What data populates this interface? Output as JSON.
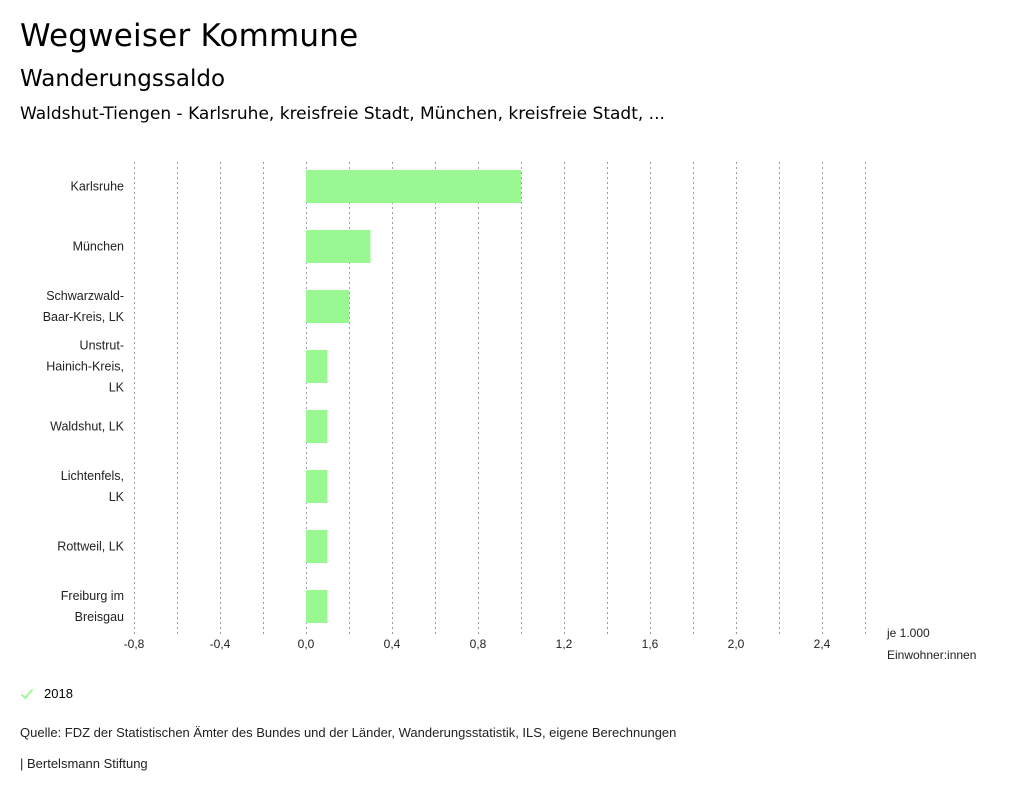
{
  "header": {
    "title": "Wegweiser Kommune",
    "subtitle": "Wanderungssaldo",
    "heading": "Waldshut-Tiengen - Karlsruhe, kreisfreie Stadt, München, kreisfreie Stadt, ..."
  },
  "chart_data": {
    "type": "bar",
    "orientation": "horizontal",
    "categories": [
      [
        "Karlsruhe"
      ],
      [
        "München"
      ],
      [
        "Schwarzwald-",
        "Baar-Kreis, LK"
      ],
      [
        "Unstrut-",
        "Hainich-Kreis,",
        "LK"
      ],
      [
        "Waldshut, LK"
      ],
      [
        "Lichtenfels,",
        "LK"
      ],
      [
        "Rottweil, LK"
      ],
      [
        "Freiburg im",
        "Breisgau"
      ]
    ],
    "series": [
      {
        "name": "2018",
        "values": [
          1.0,
          0.3,
          0.2,
          0.1,
          0.1,
          0.1,
          0.1,
          0.1
        ]
      }
    ],
    "xlim": [
      -0.8,
      2.6
    ],
    "ticks": [
      -0.8,
      -0.4,
      0.0,
      0.4,
      0.8,
      1.2,
      1.6,
      2.0,
      2.4
    ],
    "tick_labels": [
      "-0,8",
      "-0,4",
      "0,0",
      "0,4",
      "0,8",
      "1,2",
      "1,6",
      "2,0",
      "2,4"
    ],
    "grid_step": 0.2,
    "unit_label": [
      "je 1.000",
      "Einwohner:innen"
    ],
    "bar_color": "#99f891",
    "grid": true,
    "legend_position": "bottom-left"
  },
  "legend": {
    "label": "2018",
    "icon": "checkmark-icon"
  },
  "footer": {
    "source": "Quelle: FDZ der Statistischen Ämter des Bundes und der Länder, Wanderungsstatistik, ILS, eigene Berechnungen",
    "brand": "| Bertelsmann Stiftung"
  }
}
